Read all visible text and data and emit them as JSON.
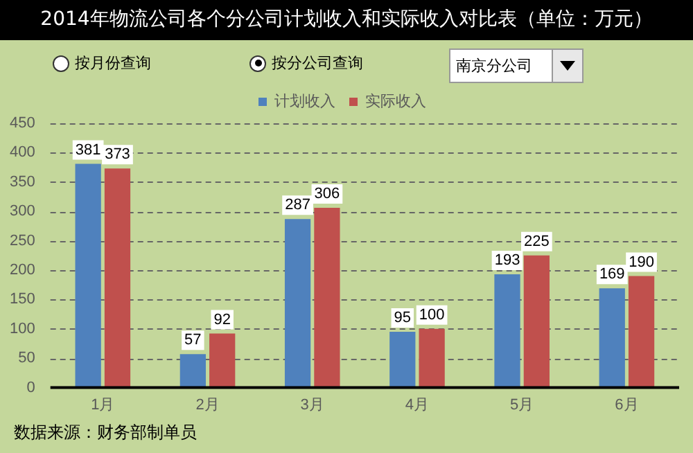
{
  "chart_data": {
    "type": "bar",
    "title": "2014年物流公司各个分公司计划收入和实际收入对比表（单位：万元）",
    "categories": [
      "1月",
      "2月",
      "3月",
      "4月",
      "5月",
      "6月"
    ],
    "series": [
      {
        "name": "计划收入",
        "color": "#4f81bd",
        "values": [
          381,
          57,
          287,
          95,
          193,
          169
        ]
      },
      {
        "name": "实际收入",
        "color": "#c0504d",
        "values": [
          373,
          92,
          306,
          100,
          225,
          190
        ]
      }
    ],
    "ylim": [
      0,
      450
    ],
    "yticks": [
      0,
      50,
      100,
      150,
      200,
      250,
      300,
      350,
      400,
      450
    ],
    "grid": "y",
    "legend": "top",
    "data_labels": true,
    "annotations": [
      "按月份查询",
      "按分公司查询",
      "南京分公司",
      "数据来源：财务部制单员"
    ]
  }
}
